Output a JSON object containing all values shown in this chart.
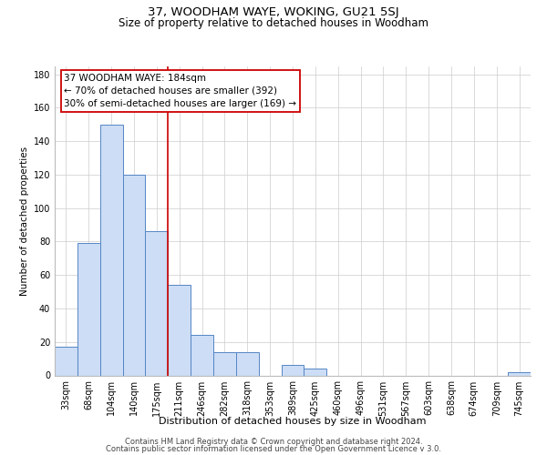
{
  "title": "37, WOODHAM WAYE, WOKING, GU21 5SJ",
  "subtitle": "Size of property relative to detached houses in Woodham",
  "xlabel": "Distribution of detached houses by size in Woodham",
  "ylabel": "Number of detached properties",
  "bin_labels": [
    "33sqm",
    "68sqm",
    "104sqm",
    "140sqm",
    "175sqm",
    "211sqm",
    "246sqm",
    "282sqm",
    "318sqm",
    "353sqm",
    "389sqm",
    "425sqm",
    "460sqm",
    "496sqm",
    "531sqm",
    "567sqm",
    "603sqm",
    "638sqm",
    "674sqm",
    "709sqm",
    "745sqm"
  ],
  "bar_values": [
    17,
    79,
    150,
    120,
    86,
    54,
    24,
    14,
    14,
    0,
    6,
    4,
    0,
    0,
    0,
    0,
    0,
    0,
    0,
    0,
    2
  ],
  "bar_color": "#ccddf5",
  "bar_edge_color": "#5585c5",
  "vline_x": 4.5,
  "vline_color": "#cc0000",
  "annotation_line1": "37 WOODHAM WAYE: 184sqm",
  "annotation_line2": "← 70% of detached houses are smaller (392)",
  "annotation_line3": "30% of semi-detached houses are larger (169) →",
  "annotation_box_color": "#ffffff",
  "annotation_box_edge": "#cc0000",
  "ylim": [
    0,
    185
  ],
  "yticks": [
    0,
    20,
    40,
    60,
    80,
    100,
    120,
    140,
    160,
    180
  ],
  "footer1": "Contains HM Land Registry data © Crown copyright and database right 2024.",
  "footer2": "Contains public sector information licensed under the Open Government Licence v 3.0.",
  "bg_color": "#ffffff",
  "grid_color": "#cccccc",
  "title_fontsize": 9.5,
  "subtitle_fontsize": 8.5,
  "ylabel_fontsize": 7.5,
  "xlabel_fontsize": 8,
  "tick_fontsize": 7,
  "annot_fontsize": 7.5
}
